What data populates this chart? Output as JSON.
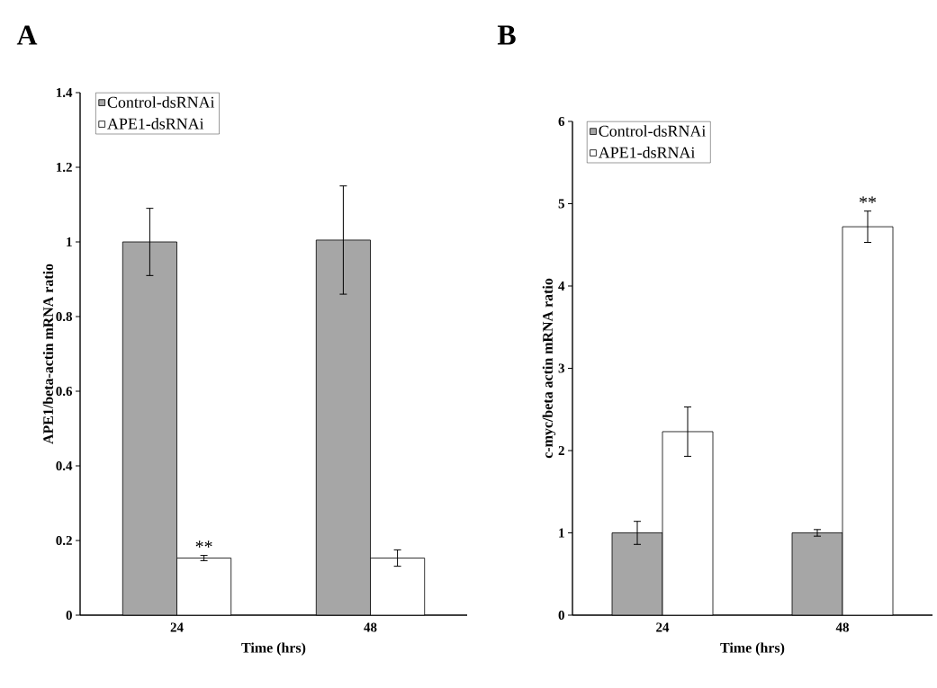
{
  "chart_data": [
    {
      "type": "bar",
      "title": "A",
      "xlabel": "Time (hrs)",
      "ylabel": "APE1/beta-actin mRNA ratio",
      "categories": [
        "24",
        "48"
      ],
      "series": [
        {
          "name": "Control-dsRNAi",
          "color": "#a6a6a6",
          "values": [
            1.0,
            1.005
          ],
          "errors": [
            0.09,
            0.145
          ]
        },
        {
          "name": "APE1-dsRNAi",
          "color": "#ffffff",
          "values": [
            0.153,
            0.153
          ],
          "errors": [
            0.007,
            0.022
          ]
        }
      ],
      "ylim": [
        0,
        1.4
      ],
      "yticks": [
        0,
        0.2,
        0.4,
        0.6,
        0.8,
        1,
        1.2,
        1.4
      ],
      "legend": "top left",
      "grid": false,
      "annotations": [
        {
          "text": "**",
          "x": "24",
          "y": 0.153
        }
      ]
    },
    {
      "type": "bar",
      "title": "B",
      "xlabel": "Time (hrs)",
      "ylabel": "c-myc/beta actin mRNA ratio",
      "categories": [
        "24",
        "48"
      ],
      "series": [
        {
          "name": "Control-dsRNAi",
          "color": "#a6a6a6",
          "values": [
            1.0,
            1.0
          ],
          "errors": [
            0.14,
            0.04
          ]
        },
        {
          "name": "APE1-dsRNAi",
          "color": "#ffffff",
          "values": [
            2.23,
            4.72
          ],
          "errors": [
            0.3,
            0.19
          ]
        }
      ],
      "ylim": [
        0,
        6
      ],
      "yticks": [
        0,
        1,
        2,
        3,
        4,
        5,
        6
      ],
      "legend": "top left",
      "grid": false,
      "annotations": [
        {
          "text": "**",
          "x": "48",
          "y": 4.72
        }
      ]
    }
  ]
}
